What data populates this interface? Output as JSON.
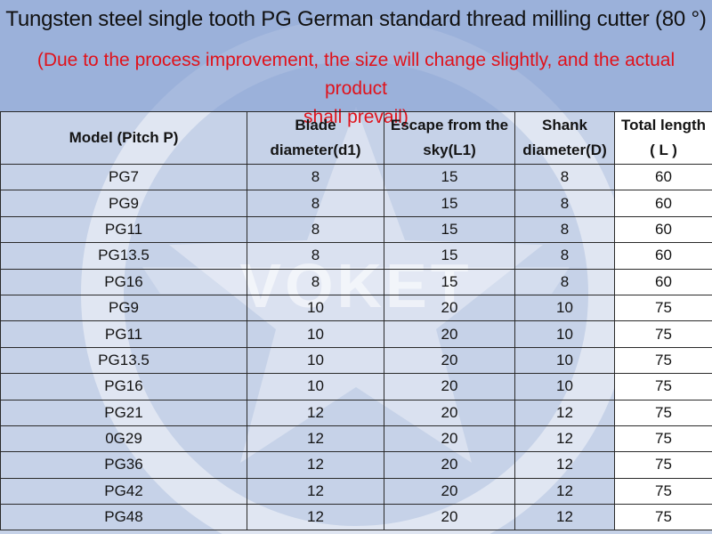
{
  "header": {
    "title": "Tungsten steel single tooth PG German standard thread milling cutter (80 °)",
    "note_line1": "(Due to the process improvement, the size will change slightly, and the actual product",
    "note_line2": "shall prevail)"
  },
  "watermark": {
    "brand": "VOKET"
  },
  "table": {
    "columns": [
      {
        "line1": "Model (Pitch P)",
        "line2": ""
      },
      {
        "line1": "Blade",
        "line2": "diameter(d1)"
      },
      {
        "line1": "Escape from the",
        "line2": "sky(L1)"
      },
      {
        "line1": "Shank",
        "line2": "diameter(D)"
      },
      {
        "line1": "Total length",
        "line2": "( L )"
      }
    ],
    "rows": [
      [
        "PG7",
        "8",
        "15",
        "8",
        "60"
      ],
      [
        "PG9",
        "8",
        "15",
        "8",
        "60"
      ],
      [
        "PG11",
        "8",
        "15",
        "8",
        "60"
      ],
      [
        "PG13.5",
        "8",
        "15",
        "8",
        "60"
      ],
      [
        "PG16",
        "8",
        "15",
        "8",
        "60"
      ],
      [
        "PG9",
        "10",
        "20",
        "10",
        "75"
      ],
      [
        "PG11",
        "10",
        "20",
        "10",
        "75"
      ],
      [
        "PG13.5",
        "10",
        "20",
        "10",
        "75"
      ],
      [
        "PG16",
        "10",
        "20",
        "10",
        "75"
      ],
      [
        "PG21",
        "12",
        "20",
        "12",
        "75"
      ],
      [
        "0G29",
        "12",
        "20",
        "12",
        "75"
      ],
      [
        "PG36",
        "12",
        "20",
        "12",
        "75"
      ],
      [
        "PG42",
        "12",
        "20",
        "12",
        "75"
      ],
      [
        "PG48",
        "12",
        "20",
        "12",
        "75"
      ]
    ]
  }
}
